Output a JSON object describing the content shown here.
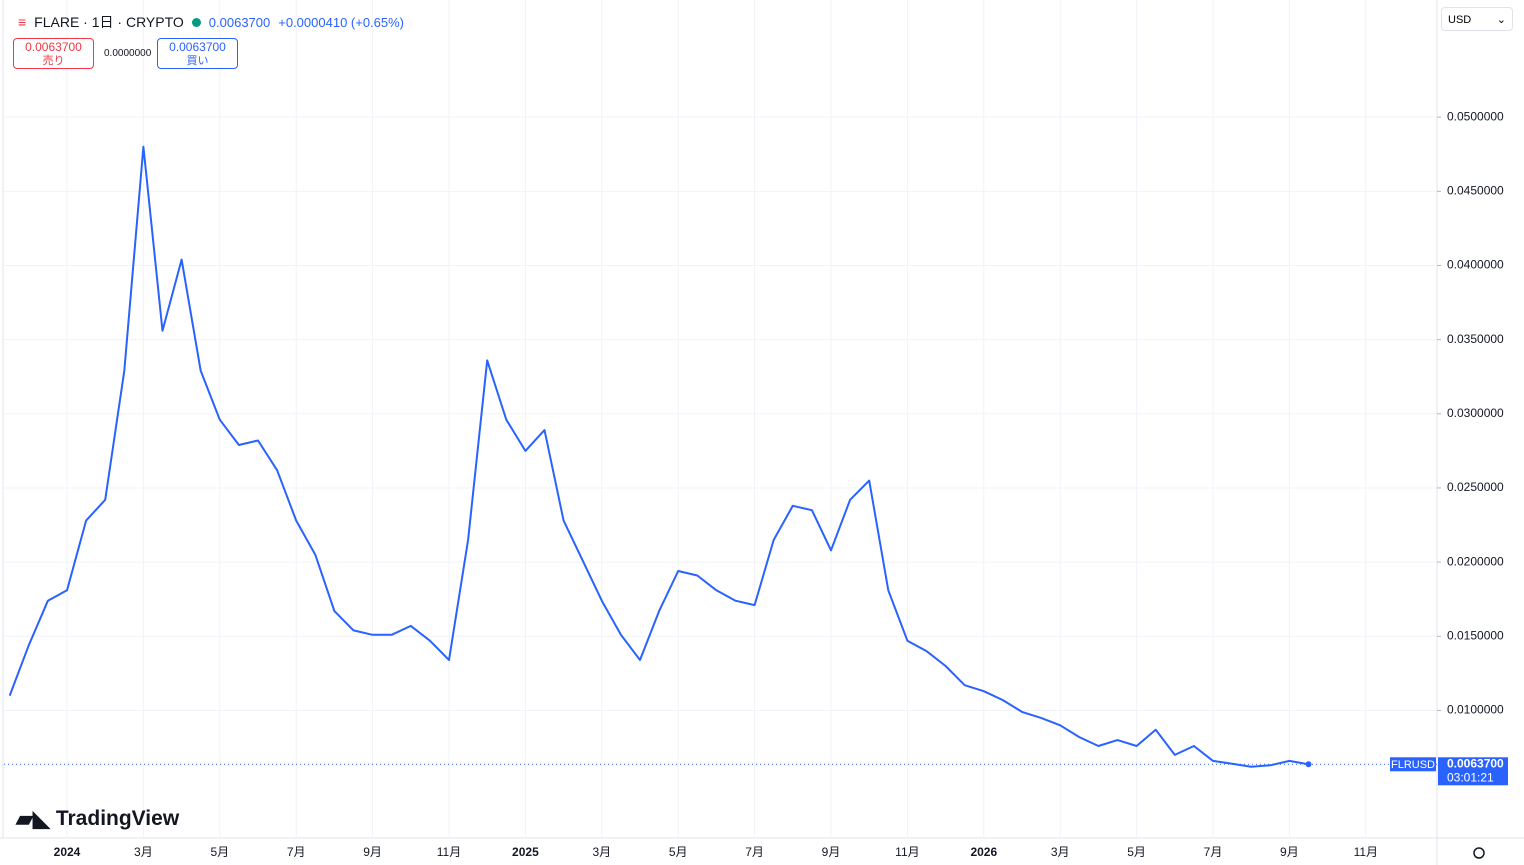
{
  "header": {
    "symbol": "FLARE · 1日 · CRYPTO",
    "price": "0.0063700",
    "change": "+0.0000410 (+0.65%)",
    "sell_price": "0.0063700",
    "sell_label": "売り",
    "spread": "0.0000000",
    "buy_price": "0.0063700",
    "buy_label": "買い",
    "currency": "USD",
    "brand": "TradingView"
  },
  "chart_data": {
    "type": "line",
    "categories": [
      null,
      null,
      null,
      "2024",
      null,
      null,
      null,
      "3月",
      null,
      null,
      null,
      "5月",
      null,
      null,
      null,
      "7月",
      null,
      null,
      null,
      "9月",
      null,
      null,
      null,
      "11月",
      null,
      null,
      null,
      "2025",
      null,
      null,
      null,
      "3月",
      null,
      null,
      null,
      "5月",
      null,
      null,
      null,
      "7月",
      null,
      null,
      null,
      "9月",
      null,
      null,
      null,
      "11月",
      null,
      null,
      null,
      "2026",
      null,
      null,
      null,
      "3月",
      null,
      null,
      null,
      "5月",
      null,
      null,
      null,
      "7月",
      null,
      null,
      null,
      "9月",
      null,
      null,
      null,
      "11月"
    ],
    "series": [
      {
        "name": "FLRUSD",
        "color": "#2962ff",
        "values": [
          0.011,
          0.0144,
          0.0174,
          0.0181,
          0.0228,
          0.0242,
          0.0329,
          0.048,
          0.0356,
          0.0404,
          0.0329,
          0.0296,
          0.0279,
          0.0282,
          0.0262,
          0.0228,
          0.0205,
          0.0167,
          0.0154,
          0.0151,
          0.0151,
          0.0157,
          0.0147,
          0.0134,
          0.0215,
          0.0336,
          0.0296,
          0.0275,
          0.0289,
          0.0228,
          0.0201,
          0.0174,
          0.0151,
          0.0134,
          0.0167,
          0.0194,
          0.0191,
          0.0181,
          0.0174,
          0.0171,
          0.0215,
          0.0238,
          0.0235,
          0.0208,
          0.0242,
          0.0255,
          0.0181,
          0.0147,
          0.014,
          0.013,
          0.0117,
          0.0113,
          0.0107,
          0.0099,
          0.0095,
          0.009,
          0.0082,
          0.0076,
          0.008,
          0.0076,
          0.0087,
          0.007,
          0.0076,
          0.0066,
          0.0064,
          0.0062,
          0.0063,
          0.0066,
          0.00637,
          null,
          null,
          null
        ]
      }
    ],
    "ylim": [
      0.0014,
      0.0579
    ],
    "yticks": [
      {
        "value": 0.01,
        "label": "0.0100000"
      },
      {
        "value": 0.015,
        "label": "0.0150000"
      },
      {
        "value": 0.02,
        "label": "0.0200000"
      },
      {
        "value": 0.025,
        "label": "0.0250000"
      },
      {
        "value": 0.03,
        "label": "0.0300000"
      },
      {
        "value": 0.035,
        "label": "0.0350000"
      },
      {
        "value": 0.04,
        "label": "0.0400000"
      },
      {
        "value": 0.045,
        "label": "0.0450000"
      },
      {
        "value": 0.05,
        "label": "0.0500000"
      }
    ],
    "last_value": {
      "value": 0.00637,
      "label": "0.0063700"
    },
    "countdown": "03:01:21",
    "grid": true
  }
}
